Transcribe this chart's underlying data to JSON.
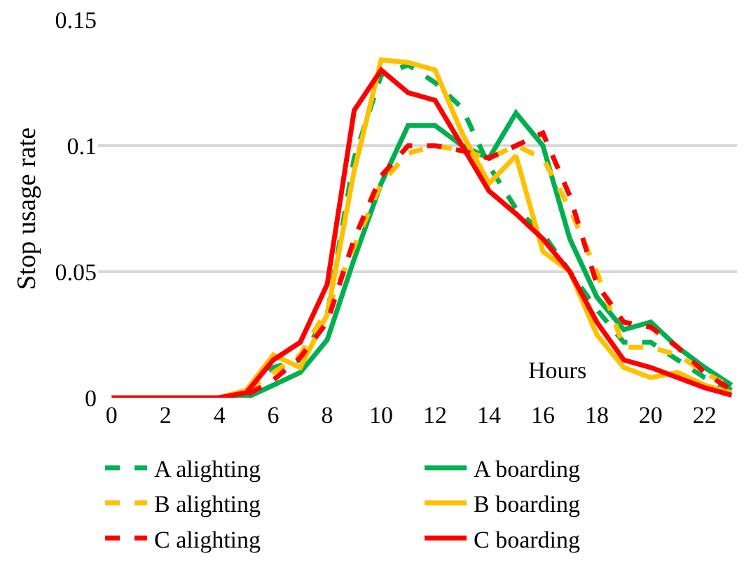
{
  "chart_data": {
    "type": "line",
    "xlabel": "Hours",
    "ylabel": "Stop usage rate",
    "x": [
      0,
      1,
      2,
      3,
      4,
      5,
      6,
      7,
      8,
      9,
      10,
      11,
      12,
      13,
      14,
      15,
      16,
      17,
      18,
      19,
      20,
      21,
      22,
      23
    ],
    "xlim": [
      -0.5,
      23.2
    ],
    "xticks": [
      0,
      2,
      4,
      6,
      8,
      10,
      12,
      14,
      16,
      18,
      20,
      22
    ],
    "ylim": [
      0,
      0.15
    ],
    "yticks": [
      0,
      0.05,
      0.1,
      0.15
    ],
    "grid": "y",
    "legend": "bottom",
    "marker": "none",
    "series": [
      {
        "name": "A alighting",
        "color": "#00b050",
        "line_style": "dashed",
        "values": [
          null,
          null,
          null,
          null,
          0,
          0.002,
          0.012,
          0.015,
          0.033,
          0.095,
          0.128,
          0.132,
          0.125,
          0.115,
          0.092,
          0.075,
          0.065,
          0.05,
          0.035,
          0.022,
          0.022,
          0.015,
          0.008,
          0.003
        ]
      },
      {
        "name": "A boarding",
        "color": "#00b050",
        "line_style": "solid",
        "values": [
          null,
          null,
          null,
          null,
          0,
          0,
          0.005,
          0.01,
          0.023,
          0.055,
          0.085,
          0.108,
          0.108,
          0.1,
          0.095,
          0.113,
          0.1,
          0.063,
          0.04,
          0.027,
          0.03,
          0.02,
          0.012,
          0.005
        ]
      },
      {
        "name": "B alighting",
        "color": "#ffc000",
        "line_style": "dashed",
        "values": [
          null,
          null,
          null,
          null,
          0,
          0.003,
          0.01,
          0.017,
          0.035,
          0.06,
          0.085,
          0.097,
          0.1,
          0.098,
          0.095,
          0.1,
          0.095,
          0.075,
          0.05,
          0.02,
          0.02,
          0.017,
          0.01,
          0.004
        ]
      },
      {
        "name": "B boarding",
        "color": "#ffc000",
        "line_style": "solid",
        "values": [
          null,
          null,
          null,
          null,
          0,
          0.003,
          0.017,
          0.012,
          0.033,
          0.09,
          0.134,
          0.133,
          0.13,
          0.105,
          0.085,
          0.096,
          0.058,
          0.05,
          0.025,
          0.012,
          0.008,
          0.01,
          0.005,
          0.002
        ]
      },
      {
        "name": "C alighting",
        "color": "#ff0000",
        "line_style": "dashed",
        "values": [
          null,
          null,
          null,
          null,
          0,
          0.001,
          0.007,
          0.016,
          0.03,
          0.063,
          0.088,
          0.1,
          0.1,
          0.098,
          0.095,
          0.1,
          0.105,
          0.08,
          0.045,
          0.03,
          0.028,
          0.02,
          0.01,
          0.003
        ]
      },
      {
        "name": "C boarding",
        "color": "#ff0000",
        "line_style": "solid",
        "values": [
          0,
          0,
          0,
          0,
          0,
          0.002,
          0.015,
          0.022,
          0.045,
          0.114,
          0.13,
          0.121,
          0.118,
          0.1,
          0.082,
          0.073,
          0.063,
          0.05,
          0.03,
          0.015,
          0.012,
          0.008,
          0.004,
          0.001
        ]
      }
    ]
  }
}
